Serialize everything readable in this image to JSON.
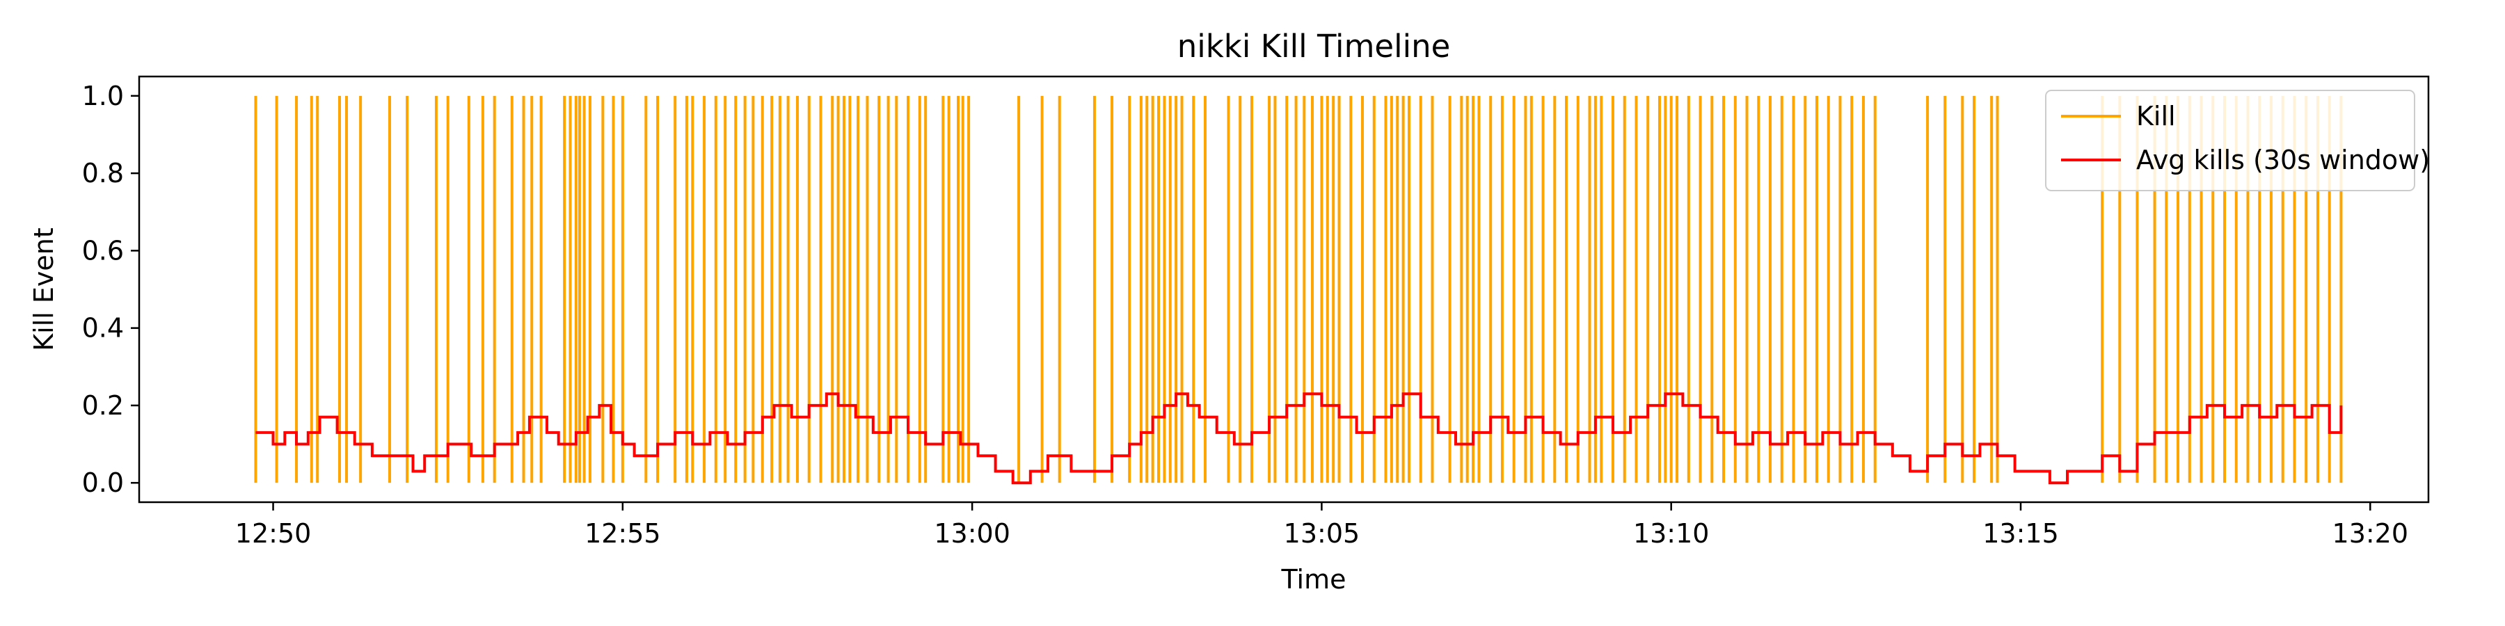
{
  "chart_data": {
    "type": "line",
    "title": "nikki Kill Timeline",
    "xlabel": "Time",
    "ylabel": "Kill Event",
    "x_unit": "clock time (HH:MM)",
    "xlim": [
      "12:48:05",
      "13:20:50"
    ],
    "ylim": [
      -0.05,
      1.05
    ],
    "x_ticks": [
      "12:50",
      "12:55",
      "13:00",
      "13:05",
      "13:10",
      "13:15",
      "13:20"
    ],
    "y_ticks": [
      "0.0",
      "0.2",
      "0.4",
      "0.6",
      "0.8",
      "1.0"
    ],
    "grid": false,
    "legend_position": "top-right",
    "colors": {
      "kill": "#FFA500",
      "avg": "#FF0000"
    },
    "series": [
      {
        "name": "Kill",
        "style": "vertical lines from 0 to 1 at each kill time",
        "kill_times": [
          "12:49:45",
          "12:50:03",
          "12:50:20",
          "12:50:33",
          "12:50:38",
          "12:50:57",
          "12:51:03",
          "12:51:15",
          "12:51:40",
          "12:51:55",
          "12:52:20",
          "12:52:30",
          "12:52:48",
          "12:53:00",
          "12:53:10",
          "12:53:25",
          "12:53:35",
          "12:53:42",
          "12:53:50",
          "12:54:10",
          "12:54:15",
          "12:54:20",
          "12:54:23",
          "12:54:27",
          "12:54:32",
          "12:54:43",
          "12:54:52",
          "12:55:00",
          "12:55:20",
          "12:55:30",
          "12:55:45",
          "12:55:55",
          "12:56:00",
          "12:56:10",
          "12:56:20",
          "12:56:28",
          "12:56:37",
          "12:56:45",
          "12:56:52",
          "12:57:00",
          "12:57:08",
          "12:57:15",
          "12:57:22",
          "12:57:30",
          "12:57:40",
          "12:57:50",
          "12:58:00",
          "12:58:05",
          "12:58:10",
          "12:58:15",
          "12:58:22",
          "12:58:30",
          "12:58:40",
          "12:58:48",
          "12:58:55",
          "12:59:05",
          "12:59:15",
          "12:59:20",
          "12:59:35",
          "12:59:40",
          "12:59:48",
          "12:59:52",
          "12:59:57",
          "13:00:40",
          "13:01:00",
          "13:01:15",
          "13:01:45",
          "13:02:00",
          "13:02:15",
          "13:02:25",
          "13:02:30",
          "13:02:35",
          "13:02:40",
          "13:02:45",
          "13:02:50",
          "13:02:55",
          "13:03:00",
          "13:03:10",
          "13:03:20",
          "13:03:40",
          "13:03:50",
          "13:04:00",
          "13:04:15",
          "13:04:20",
          "13:04:30",
          "13:04:38",
          "13:04:45",
          "13:04:52",
          "13:05:00",
          "13:05:05",
          "13:05:10",
          "13:05:15",
          "13:05:25",
          "13:05:35",
          "13:05:45",
          "13:05:55",
          "13:06:00",
          "13:06:05",
          "13:06:10",
          "13:06:15",
          "13:06:25",
          "13:06:35",
          "13:06:50",
          "13:07:00",
          "13:07:05",
          "13:07:10",
          "13:07:15",
          "13:07:25",
          "13:07:35",
          "13:07:45",
          "13:07:55",
          "13:08:00",
          "13:08:10",
          "13:08:20",
          "13:08:30",
          "13:08:40",
          "13:08:50",
          "13:08:55",
          "13:09:00",
          "13:09:10",
          "13:09:20",
          "13:09:30",
          "13:09:40",
          "13:09:50",
          "13:09:55",
          "13:10:00",
          "13:10:05",
          "13:10:15",
          "13:10:25",
          "13:10:35",
          "13:10:45",
          "13:10:55",
          "13:11:05",
          "13:11:15",
          "13:11:25",
          "13:11:35",
          "13:11:45",
          "13:11:55",
          "13:12:05",
          "13:12:15",
          "13:12:25",
          "13:12:35",
          "13:12:45",
          "13:12:55",
          "13:13:40",
          "13:13:55",
          "13:14:10",
          "13:14:20",
          "13:14:35",
          "13:14:40",
          "13:16:10",
          "13:16:25",
          "13:16:40",
          "13:16:55",
          "13:17:05",
          "13:17:15",
          "13:17:25",
          "13:17:35",
          "13:17:45",
          "13:17:55",
          "13:18:05",
          "13:18:15",
          "13:18:25",
          "13:18:35",
          "13:18:45",
          "13:18:55",
          "13:19:05",
          "13:19:15",
          "13:19:25",
          "13:19:35"
        ]
      },
      {
        "name": "Avg kills (30s window)",
        "style": "step line",
        "points": [
          [
            "12:49:45",
            0.13
          ],
          [
            "12:50:00",
            0.1
          ],
          [
            "12:50:10",
            0.13
          ],
          [
            "12:50:20",
            0.1
          ],
          [
            "12:50:30",
            0.13
          ],
          [
            "12:50:40",
            0.17
          ],
          [
            "12:50:55",
            0.13
          ],
          [
            "12:51:10",
            0.1
          ],
          [
            "12:51:25",
            0.07
          ],
          [
            "12:51:45",
            0.07
          ],
          [
            "12:52:00",
            0.03
          ],
          [
            "12:52:10",
            0.07
          ],
          [
            "12:52:30",
            0.1
          ],
          [
            "12:52:50",
            0.07
          ],
          [
            "12:53:10",
            0.1
          ],
          [
            "12:53:30",
            0.13
          ],
          [
            "12:53:40",
            0.17
          ],
          [
            "12:53:55",
            0.13
          ],
          [
            "12:54:05",
            0.1
          ],
          [
            "12:54:20",
            0.13
          ],
          [
            "12:54:30",
            0.17
          ],
          [
            "12:54:40",
            0.2
          ],
          [
            "12:54:50",
            0.13
          ],
          [
            "12:55:00",
            0.1
          ],
          [
            "12:55:10",
            0.07
          ],
          [
            "12:55:30",
            0.1
          ],
          [
            "12:55:45",
            0.13
          ],
          [
            "12:56:00",
            0.1
          ],
          [
            "12:56:15",
            0.13
          ],
          [
            "12:56:30",
            0.1
          ],
          [
            "12:56:45",
            0.13
          ],
          [
            "12:57:00",
            0.17
          ],
          [
            "12:57:10",
            0.2
          ],
          [
            "12:57:25",
            0.17
          ],
          [
            "12:57:40",
            0.2
          ],
          [
            "12:57:55",
            0.23
          ],
          [
            "12:58:05",
            0.2
          ],
          [
            "12:58:20",
            0.17
          ],
          [
            "12:58:35",
            0.13
          ],
          [
            "12:58:50",
            0.17
          ],
          [
            "12:59:05",
            0.13
          ],
          [
            "12:59:20",
            0.1
          ],
          [
            "12:59:35",
            0.13
          ],
          [
            "12:59:50",
            0.1
          ],
          [
            "13:00:05",
            0.07
          ],
          [
            "13:00:20",
            0.03
          ],
          [
            "13:00:35",
            0.0
          ],
          [
            "13:00:50",
            0.03
          ],
          [
            "13:01:05",
            0.07
          ],
          [
            "13:01:25",
            0.03
          ],
          [
            "13:01:45",
            0.03
          ],
          [
            "13:02:00",
            0.07
          ],
          [
            "13:02:15",
            0.1
          ],
          [
            "13:02:25",
            0.13
          ],
          [
            "13:02:35",
            0.17
          ],
          [
            "13:02:45",
            0.2
          ],
          [
            "13:02:55",
            0.23
          ],
          [
            "13:03:05",
            0.2
          ],
          [
            "13:03:15",
            0.17
          ],
          [
            "13:03:30",
            0.13
          ],
          [
            "13:03:45",
            0.1
          ],
          [
            "13:04:00",
            0.13
          ],
          [
            "13:04:15",
            0.17
          ],
          [
            "13:04:30",
            0.2
          ],
          [
            "13:04:45",
            0.23
          ],
          [
            "13:05:00",
            0.2
          ],
          [
            "13:05:15",
            0.17
          ],
          [
            "13:05:30",
            0.13
          ],
          [
            "13:05:45",
            0.17
          ],
          [
            "13:06:00",
            0.2
          ],
          [
            "13:06:10",
            0.23
          ],
          [
            "13:06:25",
            0.17
          ],
          [
            "13:06:40",
            0.13
          ],
          [
            "13:06:55",
            0.1
          ],
          [
            "13:07:10",
            0.13
          ],
          [
            "13:07:25",
            0.17
          ],
          [
            "13:07:40",
            0.13
          ],
          [
            "13:07:55",
            0.17
          ],
          [
            "13:08:10",
            0.13
          ],
          [
            "13:08:25",
            0.1
          ],
          [
            "13:08:40",
            0.13
          ],
          [
            "13:08:55",
            0.17
          ],
          [
            "13:09:10",
            0.13
          ],
          [
            "13:09:25",
            0.17
          ],
          [
            "13:09:40",
            0.2
          ],
          [
            "13:09:55",
            0.23
          ],
          [
            "13:10:10",
            0.2
          ],
          [
            "13:10:25",
            0.17
          ],
          [
            "13:10:40",
            0.13
          ],
          [
            "13:10:55",
            0.1
          ],
          [
            "13:11:10",
            0.13
          ],
          [
            "13:11:25",
            0.1
          ],
          [
            "13:11:40",
            0.13
          ],
          [
            "13:11:55",
            0.1
          ],
          [
            "13:12:10",
            0.13
          ],
          [
            "13:12:25",
            0.1
          ],
          [
            "13:12:40",
            0.13
          ],
          [
            "13:12:55",
            0.1
          ],
          [
            "13:13:10",
            0.07
          ],
          [
            "13:13:25",
            0.03
          ],
          [
            "13:13:40",
            0.07
          ],
          [
            "13:13:55",
            0.1
          ],
          [
            "13:14:10",
            0.07
          ],
          [
            "13:14:25",
            0.1
          ],
          [
            "13:14:40",
            0.07
          ],
          [
            "13:14:55",
            0.03
          ],
          [
            "13:15:10",
            0.03
          ],
          [
            "13:15:25",
            0.0
          ],
          [
            "13:15:40",
            0.03
          ],
          [
            "13:15:55",
            0.03
          ],
          [
            "13:16:10",
            0.07
          ],
          [
            "13:16:25",
            0.03
          ],
          [
            "13:16:40",
            0.1
          ],
          [
            "13:16:55",
            0.13
          ],
          [
            "13:17:10",
            0.13
          ],
          [
            "13:17:25",
            0.17
          ],
          [
            "13:17:40",
            0.2
          ],
          [
            "13:17:55",
            0.17
          ],
          [
            "13:18:10",
            0.2
          ],
          [
            "13:18:25",
            0.17
          ],
          [
            "13:18:40",
            0.2
          ],
          [
            "13:18:55",
            0.17
          ],
          [
            "13:19:10",
            0.2
          ],
          [
            "13:19:25",
            0.13
          ],
          [
            "13:19:35",
            0.2
          ]
        ]
      }
    ]
  }
}
